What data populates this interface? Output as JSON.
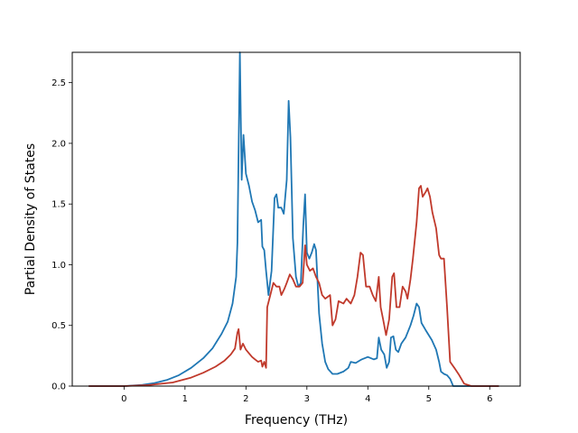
{
  "chart_data": {
    "type": "line",
    "xlabel": "Frequency (THz)",
    "ylabel": "Partial Density of States",
    "xlim": [
      -0.85,
      6.5
    ],
    "ylim": [
      0,
      2.75
    ],
    "xticks": [
      "0",
      "1",
      "2",
      "3",
      "4",
      "5",
      "6"
    ],
    "yticks": [
      "0.0",
      "0.5",
      "1.0",
      "1.5",
      "2.0",
      "2.5"
    ],
    "grid": false,
    "legend": false,
    "series": [
      {
        "color": "#1f77b4",
        "points": [
          [
            -0.58,
            0.0
          ],
          [
            0.0,
            0.0
          ],
          [
            0.3,
            0.01
          ],
          [
            0.5,
            0.025
          ],
          [
            0.7,
            0.05
          ],
          [
            0.9,
            0.09
          ],
          [
            1.1,
            0.15
          ],
          [
            1.3,
            0.23
          ],
          [
            1.45,
            0.31
          ],
          [
            1.6,
            0.43
          ],
          [
            1.7,
            0.53
          ],
          [
            1.78,
            0.68
          ],
          [
            1.84,
            0.9
          ],
          [
            1.86,
            1.18
          ],
          [
            1.9,
            2.75
          ],
          [
            1.93,
            1.7
          ],
          [
            1.96,
            2.07
          ],
          [
            2.0,
            1.75
          ],
          [
            2.05,
            1.65
          ],
          [
            2.1,
            1.52
          ],
          [
            2.15,
            1.45
          ],
          [
            2.2,
            1.35
          ],
          [
            2.25,
            1.37
          ],
          [
            2.27,
            1.15
          ],
          [
            2.3,
            1.12
          ],
          [
            2.33,
            0.95
          ],
          [
            2.37,
            0.75
          ],
          [
            2.42,
            0.95
          ],
          [
            2.47,
            1.55
          ],
          [
            2.5,
            1.58
          ],
          [
            2.53,
            1.47
          ],
          [
            2.58,
            1.47
          ],
          [
            2.62,
            1.42
          ],
          [
            2.67,
            1.7
          ],
          [
            2.7,
            2.35
          ],
          [
            2.73,
            2.05
          ],
          [
            2.77,
            1.22
          ],
          [
            2.82,
            0.9
          ],
          [
            2.86,
            0.82
          ],
          [
            2.9,
            0.85
          ],
          [
            2.94,
            1.32
          ],
          [
            2.97,
            1.58
          ],
          [
            3.0,
            1.1
          ],
          [
            3.04,
            1.05
          ],
          [
            3.08,
            1.1
          ],
          [
            3.12,
            1.17
          ],
          [
            3.15,
            1.12
          ],
          [
            3.2,
            0.6
          ],
          [
            3.25,
            0.35
          ],
          [
            3.3,
            0.2
          ],
          [
            3.35,
            0.14
          ],
          [
            3.42,
            0.1
          ],
          [
            3.5,
            0.1
          ],
          [
            3.6,
            0.12
          ],
          [
            3.68,
            0.15
          ],
          [
            3.72,
            0.2
          ],
          [
            3.8,
            0.19
          ],
          [
            3.9,
            0.22
          ],
          [
            4.0,
            0.24
          ],
          [
            4.1,
            0.22
          ],
          [
            4.15,
            0.23
          ],
          [
            4.18,
            0.4
          ],
          [
            4.22,
            0.3
          ],
          [
            4.27,
            0.26
          ],
          [
            4.31,
            0.15
          ],
          [
            4.35,
            0.2
          ],
          [
            4.38,
            0.4
          ],
          [
            4.42,
            0.41
          ],
          [
            4.46,
            0.3
          ],
          [
            4.5,
            0.28
          ],
          [
            4.55,
            0.35
          ],
          [
            4.62,
            0.4
          ],
          [
            4.7,
            0.5
          ],
          [
            4.75,
            0.58
          ],
          [
            4.8,
            0.68
          ],
          [
            4.84,
            0.65
          ],
          [
            4.88,
            0.52
          ],
          [
            4.95,
            0.46
          ],
          [
            5.05,
            0.38
          ],
          [
            5.12,
            0.3
          ],
          [
            5.17,
            0.2
          ],
          [
            5.2,
            0.12
          ],
          [
            5.25,
            0.1
          ],
          [
            5.3,
            0.09
          ],
          [
            5.35,
            0.06
          ],
          [
            5.4,
            0.0
          ],
          [
            5.6,
            0.0
          ],
          [
            6.15,
            0.0
          ]
        ]
      },
      {
        "color": "#c0392b",
        "points": [
          [
            -0.58,
            0.0
          ],
          [
            0.0,
            0.0
          ],
          [
            0.4,
            0.008
          ],
          [
            0.8,
            0.03
          ],
          [
            1.1,
            0.07
          ],
          [
            1.3,
            0.11
          ],
          [
            1.5,
            0.16
          ],
          [
            1.65,
            0.21
          ],
          [
            1.75,
            0.26
          ],
          [
            1.82,
            0.31
          ],
          [
            1.86,
            0.44
          ],
          [
            1.88,
            0.47
          ],
          [
            1.91,
            0.3
          ],
          [
            1.95,
            0.35
          ],
          [
            2.0,
            0.3
          ],
          [
            2.05,
            0.27
          ],
          [
            2.1,
            0.24
          ],
          [
            2.15,
            0.22
          ],
          [
            2.2,
            0.2
          ],
          [
            2.25,
            0.21
          ],
          [
            2.27,
            0.16
          ],
          [
            2.3,
            0.2
          ],
          [
            2.33,
            0.15
          ],
          [
            2.35,
            0.65
          ],
          [
            2.4,
            0.75
          ],
          [
            2.45,
            0.85
          ],
          [
            2.5,
            0.82
          ],
          [
            2.55,
            0.82
          ],
          [
            2.58,
            0.75
          ],
          [
            2.63,
            0.8
          ],
          [
            2.67,
            0.85
          ],
          [
            2.72,
            0.92
          ],
          [
            2.77,
            0.88
          ],
          [
            2.82,
            0.82
          ],
          [
            2.88,
            0.82
          ],
          [
            2.93,
            0.85
          ],
          [
            2.97,
            1.16
          ],
          [
            3.0,
            1.0
          ],
          [
            3.05,
            0.95
          ],
          [
            3.1,
            0.97
          ],
          [
            3.15,
            0.9
          ],
          [
            3.2,
            0.85
          ],
          [
            3.25,
            0.75
          ],
          [
            3.3,
            0.72
          ],
          [
            3.38,
            0.75
          ],
          [
            3.42,
            0.5
          ],
          [
            3.47,
            0.55
          ],
          [
            3.52,
            0.7
          ],
          [
            3.6,
            0.68
          ],
          [
            3.65,
            0.72
          ],
          [
            3.72,
            0.68
          ],
          [
            3.78,
            0.75
          ],
          [
            3.83,
            0.9
          ],
          [
            3.88,
            1.1
          ],
          [
            3.92,
            1.08
          ],
          [
            3.97,
            0.82
          ],
          [
            4.03,
            0.82
          ],
          [
            4.08,
            0.75
          ],
          [
            4.13,
            0.7
          ],
          [
            4.18,
            0.9
          ],
          [
            4.21,
            0.65
          ],
          [
            4.25,
            0.55
          ],
          [
            4.3,
            0.42
          ],
          [
            4.35,
            0.55
          ],
          [
            4.4,
            0.9
          ],
          [
            4.43,
            0.93
          ],
          [
            4.47,
            0.65
          ],
          [
            4.52,
            0.65
          ],
          [
            4.57,
            0.82
          ],
          [
            4.62,
            0.78
          ],
          [
            4.65,
            0.72
          ],
          [
            4.7,
            0.88
          ],
          [
            4.74,
            1.05
          ],
          [
            4.8,
            1.35
          ],
          [
            4.84,
            1.63
          ],
          [
            4.87,
            1.65
          ],
          [
            4.9,
            1.56
          ],
          [
            4.95,
            1.6
          ],
          [
            4.98,
            1.63
          ],
          [
            5.02,
            1.56
          ],
          [
            5.06,
            1.43
          ],
          [
            5.12,
            1.3
          ],
          [
            5.17,
            1.08
          ],
          [
            5.2,
            1.05
          ],
          [
            5.25,
            1.05
          ],
          [
            5.3,
            0.65
          ],
          [
            5.35,
            0.2
          ],
          [
            5.42,
            0.15
          ],
          [
            5.5,
            0.09
          ],
          [
            5.58,
            0.02
          ],
          [
            5.7,
            0.0
          ],
          [
            6.15,
            0.0
          ]
        ]
      }
    ]
  }
}
